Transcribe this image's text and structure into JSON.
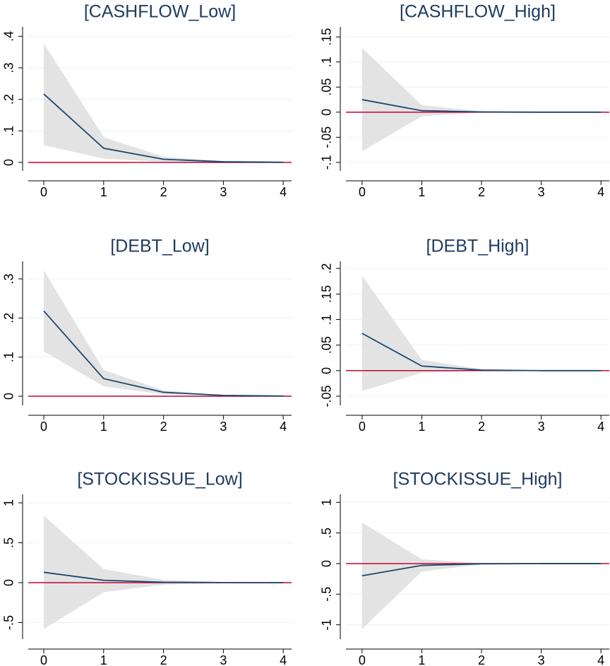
{
  "chart_data": [
    {
      "type": "line",
      "title": "[CASHFLOW_Low]",
      "x": [
        0,
        1,
        2,
        3,
        4
      ],
      "values": [
        0.217,
        0.045,
        0.01,
        0.002,
        0.0005
      ],
      "lower": [
        0.055,
        0.012,
        0.002,
        0,
        0
      ],
      "upper": [
        0.378,
        0.08,
        0.018,
        0.004,
        0.001
      ],
      "color": "#1a476f",
      "band_color": "#e3e3e3",
      "refline": 0,
      "refline_color": "#c10534",
      "grid": true,
      "xlim": [
        -0.26,
        4.14
      ],
      "xticks": [
        0,
        1,
        2,
        3,
        4
      ],
      "ylim": [
        -0.027,
        0.43
      ],
      "yticks": [
        0,
        {
          "value": 0.1,
          "label": ".1"
        },
        {
          "value": 0.2,
          "label": ".2"
        },
        {
          "value": 0.3,
          "label": ".3"
        },
        {
          "value": 0.4,
          "label": ".4"
        }
      ]
    },
    {
      "type": "line",
      "title": "[CASHFLOW_High]",
      "x": [
        0,
        1,
        2,
        3,
        4
      ],
      "values": [
        0.025,
        0.003,
        0.0005,
        0,
        0
      ],
      "lower": [
        -0.078,
        -0.008,
        -0.001,
        0,
        0
      ],
      "upper": [
        0.128,
        0.014,
        0.002,
        0.0003,
        0
      ],
      "color": "#1a476f",
      "band_color": "#e3e3e3",
      "refline": 0,
      "refline_color": "#c10534",
      "grid": true,
      "xlim": [
        -0.27,
        4.14
      ],
      "xticks": [
        0,
        1,
        2,
        3,
        4
      ],
      "ylim": [
        -0.117,
        0.17
      ],
      "yticks": [
        {
          "value": -0.1,
          "label": "-.1"
        },
        {
          "value": -0.05,
          "label": "-.05"
        },
        0,
        {
          "value": 0.05,
          "label": ".05"
        },
        {
          "value": 0.1,
          "label": ".1"
        },
        {
          "value": 0.15,
          "label": ".15"
        }
      ]
    },
    {
      "type": "line",
      "title": "[DEBT_Low]",
      "x": [
        0,
        1,
        2,
        3,
        4
      ],
      "values": [
        0.218,
        0.045,
        0.01,
        0.002,
        0.0005
      ],
      "lower": [
        0.115,
        0.025,
        0.005,
        0.001,
        0
      ],
      "upper": [
        0.322,
        0.067,
        0.015,
        0.003,
        0.001
      ],
      "color": "#1a476f",
      "band_color": "#e3e3e3",
      "refline": 0,
      "refline_color": "#c10534",
      "grid": true,
      "xlim": [
        -0.26,
        4.14
      ],
      "xticks": [
        0,
        1,
        2,
        3,
        4
      ],
      "ylim": [
        -0.0235,
        0.345
      ],
      "yticks": [
        0,
        {
          "value": 0.1,
          "label": ".1"
        },
        {
          "value": 0.2,
          "label": ".2"
        },
        {
          "value": 0.3,
          "label": ".3"
        }
      ]
    },
    {
      "type": "line",
      "title": "[DEBT_High]",
      "x": [
        0,
        1,
        2,
        3,
        4
      ],
      "values": [
        0.073,
        0.009,
        0.001,
        0,
        0
      ],
      "lower": [
        -0.04,
        -0.004,
        -0.001,
        0,
        0
      ],
      "upper": [
        0.186,
        0.021,
        0.003,
        0.0004,
        0
      ],
      "color": "#1a476f",
      "band_color": "#e3e3e3",
      "refline": 0,
      "refline_color": "#c10534",
      "grid": true,
      "xlim": [
        -0.27,
        4.14
      ],
      "xticks": [
        0,
        1,
        2,
        3,
        4
      ],
      "ylim": [
        -0.068,
        0.214
      ],
      "yticks": [
        {
          "value": -0.05,
          "label": "-.05"
        },
        0,
        {
          "value": 0.05,
          "label": ".05"
        },
        {
          "value": 0.1,
          "label": ".1"
        },
        {
          "value": 0.15,
          "label": ".15"
        },
        {
          "value": 0.2,
          "label": ".2"
        }
      ]
    },
    {
      "type": "line",
      "title": "[STOCKISSUE_Low]",
      "x": [
        0,
        1,
        2,
        3,
        4
      ],
      "values": [
        0.13,
        0.03,
        0.005,
        0.001,
        0
      ],
      "lower": [
        -0.58,
        -0.12,
        -0.025,
        -0.005,
        -0.001
      ],
      "upper": [
        0.84,
        0.17,
        0.035,
        0.007,
        0.001
      ],
      "color": "#1a476f",
      "band_color": "#e3e3e3",
      "refline": 0,
      "refline_color": "#c10534",
      "grid": true,
      "xlim": [
        -0.26,
        4.14
      ],
      "xticks": [
        0,
        1,
        2,
        3,
        4
      ],
      "ylim": [
        -0.708,
        1.106
      ],
      "yticks": [
        {
          "value": -0.5,
          "label": "-.5"
        },
        0,
        {
          "value": 0.5,
          "label": ".5"
        },
        1
      ]
    },
    {
      "type": "line",
      "title": "[STOCKISSUE_High]",
      "x": [
        0,
        1,
        2,
        3,
        4
      ],
      "values": [
        -0.2,
        -0.03,
        -0.004,
        0,
        0
      ],
      "lower": [
        -1.07,
        -0.13,
        -0.015,
        -0.002,
        0
      ],
      "upper": [
        0.67,
        0.07,
        0.008,
        0.001,
        0
      ],
      "color": "#1a476f",
      "band_color": "#e3e3e3",
      "refline": 0,
      "refline_color": "#c10534",
      "grid": true,
      "xlim": [
        -0.27,
        4.14
      ],
      "xticks": [
        0,
        1,
        2,
        3,
        4
      ],
      "ylim": [
        -1.235,
        1.13
      ],
      "yticks": [
        -1,
        {
          "value": -0.5,
          "label": "-.5"
        },
        0,
        {
          "value": 0.5,
          "label": ".5"
        },
        1
      ]
    }
  ]
}
